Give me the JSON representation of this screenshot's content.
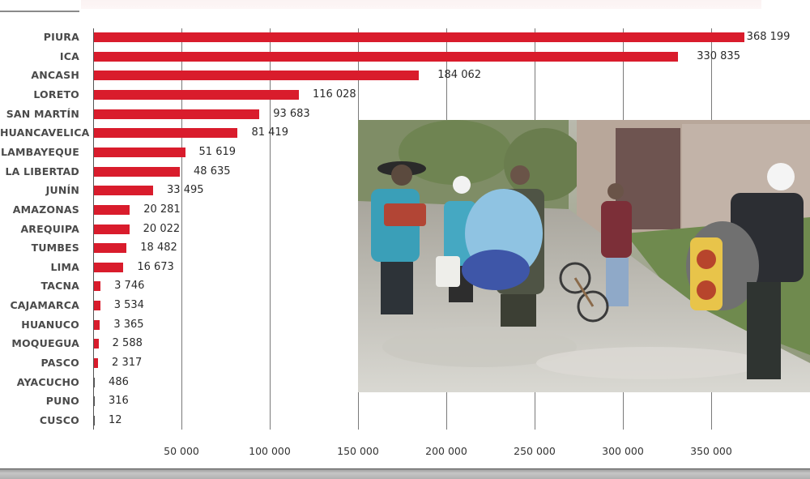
{
  "chart_data": {
    "type": "bar",
    "orientation": "horizontal",
    "title": "",
    "xlabel": "",
    "ylabel": "",
    "xlim": [
      0,
      368199
    ],
    "grid": true,
    "bar_color": "#d91c2c",
    "categories": [
      "PIURA",
      "ICA",
      "ANCASH",
      "LORETO",
      "SAN MARTÍN",
      "HUANCAVELICA",
      "LAMBAYEQUE",
      "LA LIBERTAD",
      "JUNÍN",
      "AMAZONAS",
      "AREQUIPA",
      "TUMBES",
      "LIMA",
      "TACNA",
      "CAJAMARCA",
      "HUANUCO",
      "MOQUEGUA",
      "PASCO",
      "AYACUCHO",
      "PUNO",
      "CUSCO"
    ],
    "values": [
      368199,
      330835,
      184062,
      116028,
      93683,
      81419,
      51619,
      48635,
      33495,
      20281,
      20022,
      18482,
      16673,
      3746,
      3534,
      3365,
      2588,
      2317,
      486,
      316,
      12
    ],
    "value_labels": [
      "368 199",
      "330 835",
      "184 062",
      "116 028",
      "93 683",
      "81 419",
      "51 619",
      "48 635",
      "33 495",
      "20 281",
      "20 022",
      "18 482",
      "16 673",
      "3 746",
      "3 534",
      "3 365",
      "2 588",
      "2 317",
      "486",
      "316",
      "12"
    ],
    "x_ticks": [
      50000,
      100000,
      150000,
      200000,
      250000,
      300000,
      350000
    ],
    "x_tick_labels": [
      "50 000",
      "100 000",
      "150 000",
      "200 000",
      "250 000",
      "300 000",
      "350 000"
    ]
  },
  "photo": {
    "description": "People carrying belongings along a muddy, flooded street; workers in hard hats and teal reflective jackets"
  }
}
